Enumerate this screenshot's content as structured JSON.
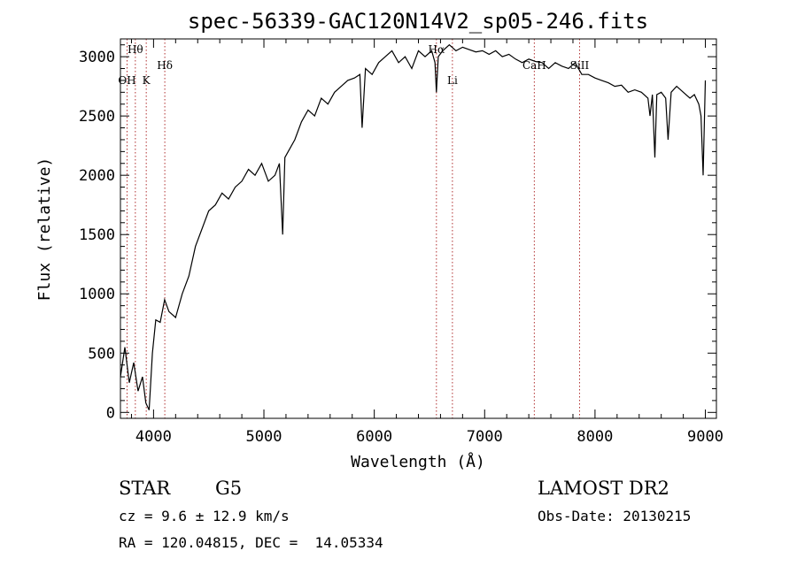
{
  "chart_data": {
    "type": "line",
    "title": "spec-56339-GAC120N14V2_sp05-246.fits",
    "xlabel": "Wavelength (Å)",
    "ylabel": "Flux (relative)",
    "xlim": [
      3700,
      9100
    ],
    "ylim": [
      -50,
      3150
    ],
    "xticks": [
      4000,
      5000,
      6000,
      7000,
      8000,
      9000
    ],
    "yticks": [
      0,
      500,
      1000,
      1500,
      2000,
      2500,
      3000
    ],
    "series": [
      {
        "x": [
          3700,
          3740,
          3780,
          3820,
          3860,
          3900,
          3930,
          3960,
          3990,
          4020,
          4060,
          4100,
          4140,
          4200,
          4260,
          4320,
          4380,
          4440,
          4500,
          4560,
          4620,
          4680,
          4740,
          4800,
          4860,
          4920,
          4980,
          5040,
          5100,
          5140,
          5170,
          5190,
          5220,
          5280,
          5340,
          5400,
          5460,
          5520,
          5580,
          5640,
          5700,
          5760,
          5820,
          5870,
          5890,
          5920,
          5980,
          6040,
          6100,
          6160,
          6220,
          6280,
          6340,
          6400,
          6460,
          6520,
          6550,
          6563,
          6580,
          6620,
          6680,
          6740,
          6800,
          6860,
          6920,
          6980,
          7040,
          7100,
          7160,
          7220,
          7280,
          7340,
          7400,
          7460,
          7520,
          7580,
          7640,
          7700,
          7760,
          7820,
          7880,
          7940,
          8000,
          8060,
          8120,
          8180,
          8240,
          8300,
          8360,
          8420,
          8480,
          8498,
          8520,
          8542,
          8560,
          8600,
          8640,
          8662,
          8690,
          8740,
          8800,
          8860,
          8900,
          8940,
          8960,
          8980,
          9000
        ],
        "y": [
          300,
          550,
          250,
          420,
          180,
          300,
          80,
          20,
          500,
          780,
          760,
          950,
          850,
          800,
          1000,
          1150,
          1400,
          1550,
          1700,
          1750,
          1850,
          1800,
          1900,
          1950,
          2050,
          2000,
          2100,
          1950,
          2000,
          2100,
          1500,
          2150,
          2200,
          2300,
          2450,
          2550,
          2500,
          2650,
          2600,
          2700,
          2750,
          2800,
          2820,
          2850,
          2400,
          2900,
          2850,
          2950,
          3000,
          3050,
          2950,
          3000,
          2900,
          3050,
          3000,
          3050,
          2950,
          2700,
          3000,
          3050,
          3100,
          3050,
          3080,
          3060,
          3040,
          3050,
          3020,
          3050,
          3000,
          3020,
          2980,
          2950,
          2980,
          2960,
          2950,
          2900,
          2950,
          2920,
          2900,
          2950,
          2850,
          2850,
          2820,
          2800,
          2780,
          2750,
          2760,
          2700,
          2720,
          2700,
          2650,
          2500,
          2680,
          2150,
          2680,
          2700,
          2650,
          2300,
          2700,
          2750,
          2700,
          2650,
          2680,
          2600,
          2500,
          2000,
          2800
        ]
      }
    ],
    "lines": [
      {
        "x": 3835,
        "label": "Hθ",
        "row": 0
      },
      {
        "x": 3934,
        "label": "K",
        "row": 2
      },
      {
        "x": 4102,
        "label": "Hδ",
        "row": 1
      },
      {
        "x": 6563,
        "label": "Hα",
        "row": 0
      },
      {
        "x": 6708,
        "label": "Li",
        "row": 2
      },
      {
        "x": 7450,
        "label": "CaH",
        "row": 1
      },
      {
        "x": 7860,
        "label": "SiII",
        "row": 1
      },
      {
        "x": 3760,
        "label": "OH",
        "row": 2
      }
    ]
  },
  "info": {
    "object_class": "STAR",
    "subclass": "G5",
    "cz": "cz = 9.6 ± 12.9 km/s",
    "radec": "RA = 120.04815, DEC =  14.05334",
    "survey": "LAMOST DR2",
    "obsdate": "Obs-Date: 20130215"
  }
}
